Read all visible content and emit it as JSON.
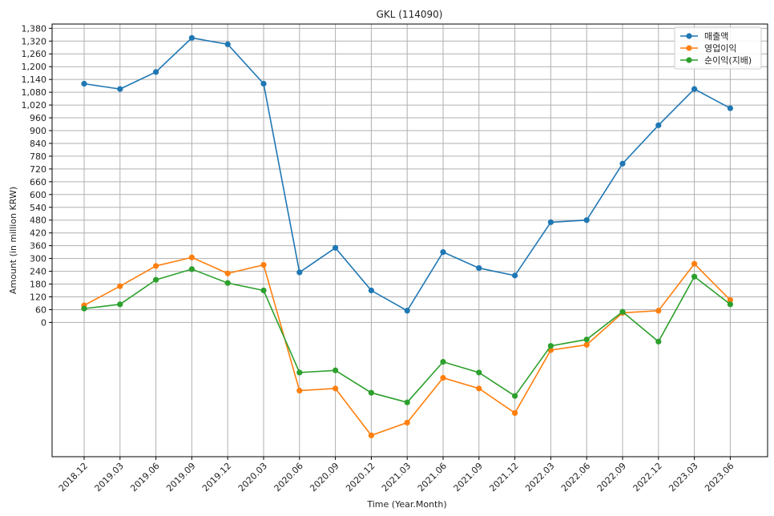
{
  "chart_data": {
    "type": "line",
    "title": "GKL (114090)",
    "xlabel": "Time (Year.Month)",
    "ylabel": "Amount (in million KRW)",
    "categories": [
      "2018.12",
      "2019.03",
      "2019.06",
      "2019.09",
      "2019.12",
      "2020.03",
      "2020.06",
      "2020.09",
      "2020.12",
      "2021.03",
      "2021.06",
      "2021.09",
      "2021.12",
      "2022.03",
      "2022.06",
      "2022.09",
      "2022.12",
      "2023.03",
      "2023.06"
    ],
    "yticks": [
      0,
      60,
      120,
      180,
      240,
      300,
      360,
      420,
      480,
      540,
      600,
      660,
      720,
      780,
      840,
      900,
      960,
      1020,
      1080,
      1140,
      1200,
      1260,
      1320,
      1380
    ],
    "ytick_labels": [
      "0",
      "60",
      "120",
      "180",
      "240",
      "300",
      "360",
      "420",
      "480",
      "540",
      "600",
      "660",
      "720",
      "780",
      "840",
      "900",
      "960",
      "1,020",
      "1,080",
      "1,140",
      "1,200",
      "1,260",
      "1,320",
      "1,380"
    ],
    "ylim": [
      -630,
      1400
    ],
    "grid": true,
    "legend_position": "top-right",
    "series": [
      {
        "name": "매출액",
        "color": "#1f77b4",
        "values": [
          1120,
          1095,
          1175,
          1335,
          1305,
          1120,
          235,
          350,
          150,
          55,
          330,
          255,
          220,
          470,
          480,
          745,
          925,
          1095,
          1005
        ]
      },
      {
        "name": "영업이익",
        "color": "#ff7f0e",
        "values": [
          80,
          170,
          265,
          305,
          230,
          270,
          -320,
          -310,
          -530,
          -470,
          -260,
          -310,
          -425,
          -130,
          -105,
          45,
          55,
          275,
          105
        ]
      },
      {
        "name": "순이익(지배)",
        "color": "#2ca02c",
        "values": [
          65,
          85,
          200,
          250,
          185,
          150,
          -235,
          -225,
          -330,
          -375,
          -185,
          -235,
          -345,
          -110,
          -80,
          50,
          -90,
          215,
          85
        ]
      }
    ]
  }
}
